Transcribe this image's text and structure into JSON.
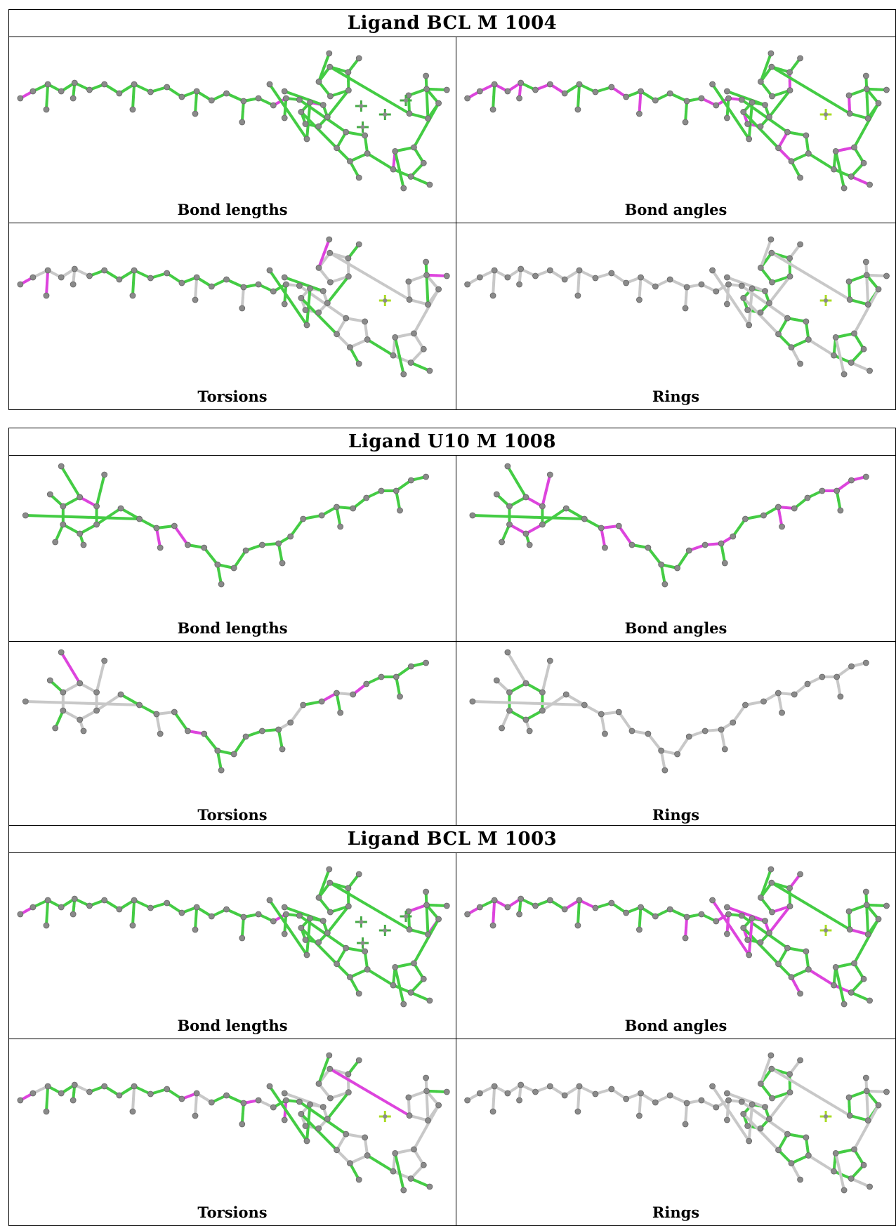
{
  "figures": [
    {
      "title": "Ligand BCL M 1004",
      "type": "bcl",
      "panels": [
        {
          "label": "Bond lengths",
          "mode": "bl"
        },
        {
          "label": "Bond angles",
          "mode": "ba"
        },
        {
          "label": "Torsions",
          "mode": "tor"
        },
        {
          "label": "Rings",
          "mode": "ring"
        }
      ]
    },
    {
      "title": "Ligand U10 M 1008",
      "type": "u10",
      "panels": [
        {
          "label": "Bond lengths",
          "mode": "bl"
        },
        {
          "label": "Bond angles",
          "mode": "ba"
        },
        {
          "label": "Torsions",
          "mode": "tor"
        },
        {
          "label": "Rings",
          "mode": "ring"
        }
      ]
    },
    {
      "title": "Ligand BCL M 1003",
      "type": "bcl",
      "panels": [
        {
          "label": "Bond lengths",
          "mode": "bl"
        },
        {
          "label": "Bond angles",
          "mode": "ba"
        },
        {
          "label": "Torsions",
          "mode": "tor"
        },
        {
          "label": "Rings",
          "mode": "ring"
        }
      ]
    }
  ],
  "colors": {
    "ok": "#44cc44",
    "outlier": "#dd44dd",
    "unchecked": "#c8c8c8",
    "atom": "#8a8a8a",
    "atom_stroke": "#666666",
    "metal_ok": "#44aa44",
    "metal_ring": "#aadd22"
  }
}
